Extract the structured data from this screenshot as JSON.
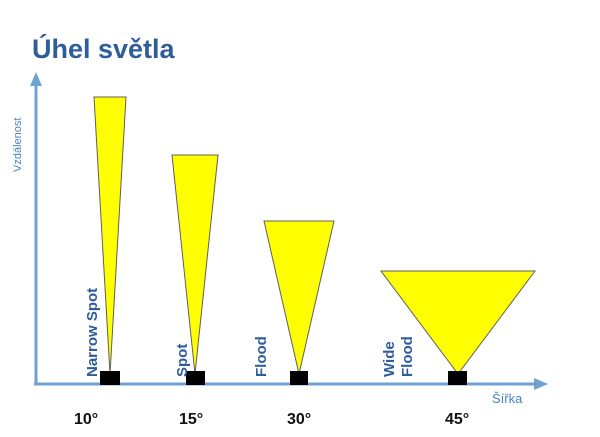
{
  "title": "Úhel světla",
  "axes": {
    "x_label": "Šířka",
    "y_label": "Vzdálenost"
  },
  "colors": {
    "beam_fill": "#ffff00",
    "beam_stroke": "#5f5f5f",
    "axis": "#6ea2d2",
    "title": "#2f5d9b",
    "source": "#000000"
  },
  "beams": [
    {
      "label_lines": [
        "Narrow Spot"
      ],
      "angle": "10°"
    },
    {
      "label_lines": [
        "Spot"
      ],
      "angle": "15°"
    },
    {
      "label_lines": [
        "Flood"
      ],
      "angle": "30°"
    },
    {
      "label_lines": [
        "Wide",
        "Flood"
      ],
      "angle": "45°"
    }
  ]
}
